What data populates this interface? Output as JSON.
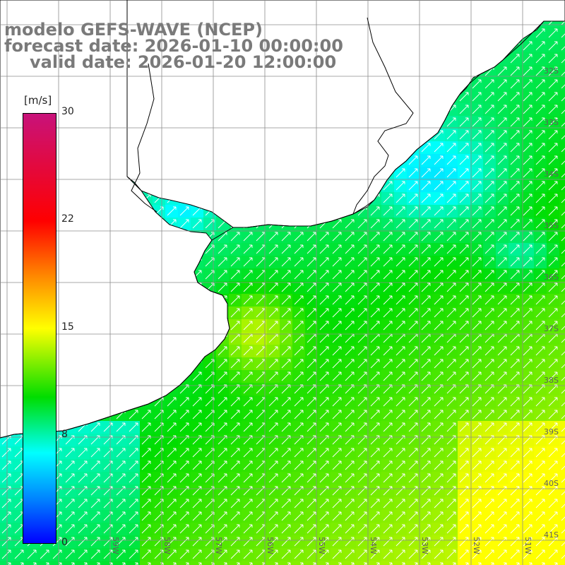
{
  "title": {
    "model": "modelo GEFS-WAVE (NCEP)",
    "forecast": "forecast date: 2026-01-10 00:00:00",
    "valid": "valid date: 2026-01-20 12:00:00"
  },
  "colorbar": {
    "units": "[m/s]",
    "ticks": [
      "30",
      "22",
      "15",
      "8",
      "0"
    ],
    "tick_values": [
      30,
      22,
      15,
      8,
      0
    ],
    "colors": [
      "#0000ff",
      "#0080ff",
      "#00ffff",
      "#00dd00",
      "#ffff00",
      "#ff8a00",
      "#ff0000",
      "#c8127a"
    ]
  },
  "map": {
    "lat_labels": [
      "32S",
      "33S",
      "34S",
      "35S",
      "36S",
      "37S",
      "38S",
      "39S",
      "40S",
      "41S"
    ],
    "lon_labels": [
      "59W",
      "58W",
      "57W",
      "56W",
      "55W",
      "54W",
      "53W",
      "52W",
      "51W"
    ],
    "wind_direction": "northeast",
    "land_color": "#ffffff",
    "grid_color": "#8c8c8c"
  }
}
